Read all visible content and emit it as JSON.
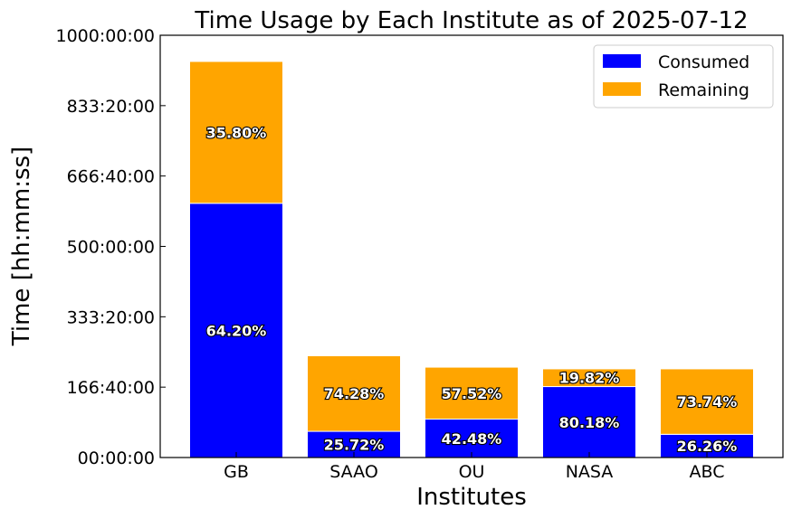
{
  "chart_data": {
    "type": "bar",
    "stacked": true,
    "title": "Time Usage by Each Institute as of 2025-07-12",
    "xlabel": "Institutes",
    "ylabel": "Time [hh:mm:ss]",
    "categories": [
      "GB",
      "SAAO",
      "OU",
      "NASA",
      "ABC"
    ],
    "series": [
      {
        "name": "Consumed",
        "color": "#0000ff",
        "values_hours": [
          602,
          62,
          91,
          168,
          55
        ],
        "labels": [
          "64.20%",
          "25.72%",
          "42.48%",
          "80.18%",
          "26.26%"
        ]
      },
      {
        "name": "Remaining",
        "color": "#ffa500",
        "values_hours": [
          336,
          179,
          123,
          42,
          155
        ],
        "labels": [
          "35.80%",
          "74.28%",
          "57.52%",
          "19.82%",
          "73.74%"
        ]
      }
    ],
    "ylim_hours": [
      0,
      1000
    ],
    "yticks": [
      "00:00:00",
      "166:40:00",
      "333:20:00",
      "500:00:00",
      "666:40:00",
      "833:20:00",
      "1000:00:00"
    ],
    "ytick_values_hours": [
      0,
      166.667,
      333.333,
      500,
      666.667,
      833.333,
      1000
    ],
    "legend": {
      "placement": "top-right",
      "entries": [
        "Consumed",
        "Remaining"
      ]
    },
    "grid": false
  }
}
